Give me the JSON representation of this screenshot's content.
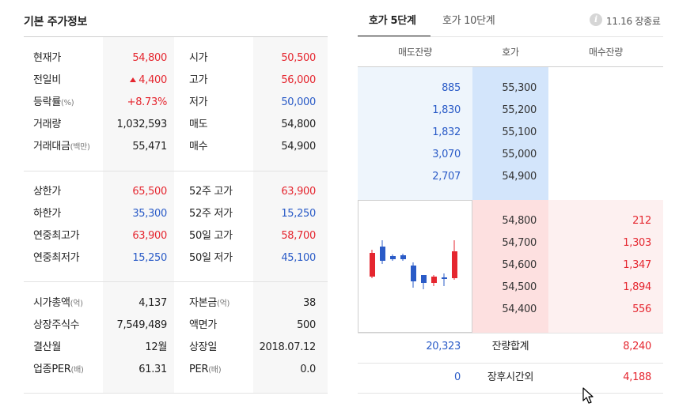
{
  "left": {
    "title": "기본 주가정보",
    "block1": [
      {
        "label": "현재가",
        "value": "54,800",
        "color": "red",
        "label2": "시가",
        "value2": "50,500",
        "color2": "red"
      },
      {
        "label": "전일비",
        "value": "4,400",
        "color": "red",
        "up": true,
        "label2": "고가",
        "value2": "56,000",
        "color2": "red"
      },
      {
        "label": "등락률",
        "label_unit": "(%)",
        "value": "+8.73%",
        "color": "red",
        "label2": "저가",
        "value2": "50,000",
        "color2": "blue"
      },
      {
        "label": "거래량",
        "value": "1,032,593",
        "color": "black",
        "label2": "매도",
        "value2": "54,800",
        "color2": "black"
      },
      {
        "label": "거래대금",
        "label_unit": "(백만)",
        "value": "55,471",
        "color": "black",
        "label2": "매수",
        "value2": "54,900",
        "color2": "black"
      }
    ],
    "block2": [
      {
        "label": "상한가",
        "value": "65,500",
        "color": "red",
        "label2": "52주 고가",
        "value2": "63,900",
        "color2": "red"
      },
      {
        "label": "하한가",
        "value": "35,300",
        "color": "blue",
        "label2": "52주 저가",
        "value2": "15,250",
        "color2": "blue"
      },
      {
        "label": "연중최고가",
        "value": "63,900",
        "color": "red",
        "label2": "50일 고가",
        "value2": "58,700",
        "color2": "red"
      },
      {
        "label": "연중최저가",
        "value": "15,250",
        "color": "blue",
        "label2": "50일 저가",
        "value2": "45,100",
        "color2": "blue"
      }
    ],
    "block3": [
      {
        "label": "시가총액",
        "label_unit": "(억)",
        "value": "4,137",
        "color": "black",
        "label2": "자본금",
        "label2_unit": "(억)",
        "value2": "38",
        "color2": "black"
      },
      {
        "label": "상장주식수",
        "value": "7,549,489",
        "color": "black",
        "label2": "액면가",
        "value2": "500",
        "color2": "black"
      },
      {
        "label": "결산월",
        "value": "12월",
        "color": "black",
        "label2": "상장일",
        "value2": "2018.07.12",
        "color2": "black"
      },
      {
        "label": "업종PER",
        "label_unit": "(배)",
        "value": "61.31",
        "color": "black",
        "label2": "PER",
        "label2_unit": "(배)",
        "value2": "0.0",
        "color2": "black"
      }
    ]
  },
  "right": {
    "tabs": [
      "호가 5단계",
      "호가 10단계"
    ],
    "info_icon": "info-icon",
    "status": "11.16 장종료",
    "headers": [
      "매도잔량",
      "호가",
      "매수잔량"
    ],
    "asks": [
      {
        "volume": "885",
        "price": "55,300"
      },
      {
        "volume": "1,830",
        "price": "55,200"
      },
      {
        "volume": "1,832",
        "price": "55,100"
      },
      {
        "volume": "3,070",
        "price": "55,000"
      },
      {
        "volume": "2,707",
        "price": "54,900"
      }
    ],
    "bids": [
      {
        "price": "54,800",
        "volume": "212"
      },
      {
        "price": "54,700",
        "volume": "1,303"
      },
      {
        "price": "54,600",
        "volume": "1,347"
      },
      {
        "price": "54,500",
        "volume": "1,894"
      },
      {
        "price": "54,400",
        "volume": "556"
      }
    ],
    "total": {
      "ask": "20,323",
      "label": "잔량합계",
      "bid": "8,240"
    },
    "after": {
      "ask": "0",
      "label": "장후시간외",
      "bid": "4,188"
    },
    "mini_chart": {
      "up_color": "#e5262f",
      "down_color": "#2a5bc7",
      "candles": [
        "up",
        "down",
        "down",
        "down",
        "down",
        "down",
        "up",
        "down",
        "up"
      ]
    }
  }
}
